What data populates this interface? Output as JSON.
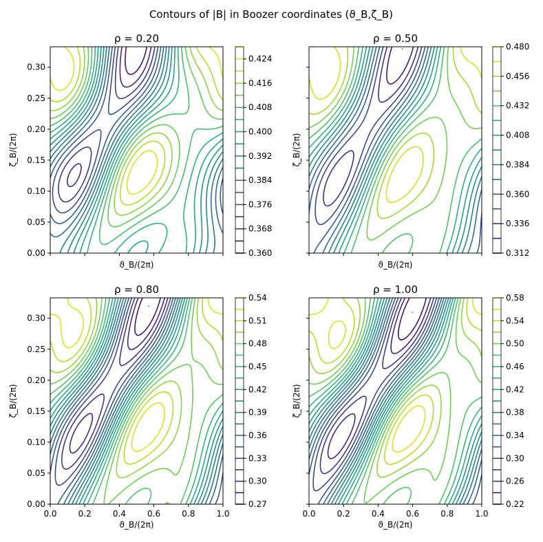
{
  "suptitle": "Contours of |B| in Boozer coordinates (ϑ_B,ζ_B)",
  "chart_data": [
    {
      "type": "contour",
      "title": "ρ = 0.20",
      "xlabel": "ϑ_B/(2π)",
      "ylabel": "ζ_B/(2π)",
      "xlim": [
        0,
        1
      ],
      "ylim": [
        0,
        0.333
      ],
      "xticks": [
        "0.0",
        "0.2",
        "0.4",
        "0.6",
        "0.8",
        "1.0"
      ],
      "yticks": [
        "0.00",
        "0.05",
        "0.10",
        "0.15",
        "0.20",
        "0.25",
        "0.30"
      ],
      "show_xticklabels": false,
      "show_yticklabels": true,
      "levels": [
        0.36,
        0.364,
        0.368,
        0.372,
        0.376,
        0.38,
        0.384,
        0.388,
        0.392,
        0.396,
        0.4,
        0.404,
        0.408,
        0.412,
        0.416,
        0.42,
        0.424,
        0.428
      ],
      "colorbar_ticks": [
        "0.360",
        "0.368",
        "0.376",
        "0.384",
        "0.392",
        "0.400",
        "0.408",
        "0.416",
        "0.424"
      ],
      "colorbar_range": [
        0.36,
        0.428
      ],
      "field": {
        "B0": 0.392,
        "amp_sin": 0.03,
        "amp_cos3": 0.01,
        "tilt": 0.5
      }
    },
    {
      "type": "contour",
      "title": "ρ = 0.50",
      "xlabel": "ϑ_B/(2π)",
      "ylabel": "ζ_B/(2π)",
      "xlim": [
        0,
        1
      ],
      "ylim": [
        0,
        0.333
      ],
      "xticks": [
        "0.0",
        "0.2",
        "0.4",
        "0.6",
        "0.8",
        "1.0"
      ],
      "yticks": [
        "0.00",
        "0.05",
        "0.10",
        "0.15",
        "0.20",
        "0.25",
        "0.30"
      ],
      "show_xticklabels": false,
      "show_yticklabels": false,
      "levels": [
        0.312,
        0.324,
        0.336,
        0.348,
        0.36,
        0.372,
        0.384,
        0.396,
        0.408,
        0.42,
        0.432,
        0.444,
        0.456,
        0.468,
        0.48
      ],
      "colorbar_ticks": [
        "0.312",
        "0.336",
        "0.360",
        "0.384",
        "0.408",
        "0.432",
        "0.456",
        "0.480"
      ],
      "colorbar_range": [
        0.312,
        0.48
      ],
      "field": {
        "B0": 0.396,
        "amp_sin": 0.074,
        "amp_cos3": 0.015,
        "tilt": 0.55
      }
    },
    {
      "type": "contour",
      "title": "ρ = 0.80",
      "xlabel": "ϑ_B/(2π)",
      "ylabel": "ζ_B/(2π)",
      "xlim": [
        0,
        1
      ],
      "ylim": [
        0,
        0.333
      ],
      "xticks": [
        "0.0",
        "0.2",
        "0.4",
        "0.6",
        "0.8",
        "1.0"
      ],
      "yticks": [
        "0.00",
        "0.05",
        "0.10",
        "0.15",
        "0.20",
        "0.25",
        "0.30"
      ],
      "show_xticklabels": true,
      "show_yticklabels": true,
      "levels": [
        0.27,
        0.285,
        0.3,
        0.315,
        0.33,
        0.345,
        0.36,
        0.375,
        0.39,
        0.405,
        0.42,
        0.435,
        0.45,
        0.465,
        0.48,
        0.495,
        0.51,
        0.525,
        0.54
      ],
      "colorbar_ticks": [
        "0.27",
        "0.30",
        "0.33",
        "0.36",
        "0.39",
        "0.42",
        "0.45",
        "0.48",
        "0.51",
        "0.54"
      ],
      "colorbar_range": [
        0.27,
        0.54
      ],
      "field": {
        "B0": 0.405,
        "amp_sin": 0.118,
        "amp_cos3": 0.022,
        "tilt": 0.6
      }
    },
    {
      "type": "contour",
      "title": "ρ = 1.00",
      "xlabel": "ϑ_B/(2π)",
      "ylabel": "ζ_B/(2π)",
      "xlim": [
        0,
        1
      ],
      "ylim": [
        0,
        0.333
      ],
      "xticks": [
        "0.0",
        "0.2",
        "0.4",
        "0.6",
        "0.8",
        "1.0"
      ],
      "yticks": [
        "0.00",
        "0.05",
        "0.10",
        "0.15",
        "0.20",
        "0.25",
        "0.30"
      ],
      "show_xticklabels": true,
      "show_yticklabels": false,
      "levels": [
        0.22,
        0.24,
        0.26,
        0.28,
        0.3,
        0.32,
        0.34,
        0.36,
        0.38,
        0.4,
        0.42,
        0.44,
        0.46,
        0.48,
        0.5,
        0.52,
        0.54,
        0.56,
        0.58
      ],
      "colorbar_ticks": [
        "0.22",
        "0.26",
        "0.30",
        "0.34",
        "0.38",
        "0.42",
        "0.46",
        "0.50",
        "0.54",
        "0.58"
      ],
      "colorbar_range": [
        0.22,
        0.58
      ],
      "field": {
        "B0": 0.4,
        "amp_sin": 0.16,
        "amp_cos3": 0.03,
        "tilt": 0.65
      }
    }
  ],
  "colors": {
    "viridis": [
      "#440154",
      "#482878",
      "#3e4989",
      "#31688e",
      "#26828e",
      "#1f9e89",
      "#35b779",
      "#6ece58",
      "#b5de2b",
      "#fde725"
    ]
  }
}
